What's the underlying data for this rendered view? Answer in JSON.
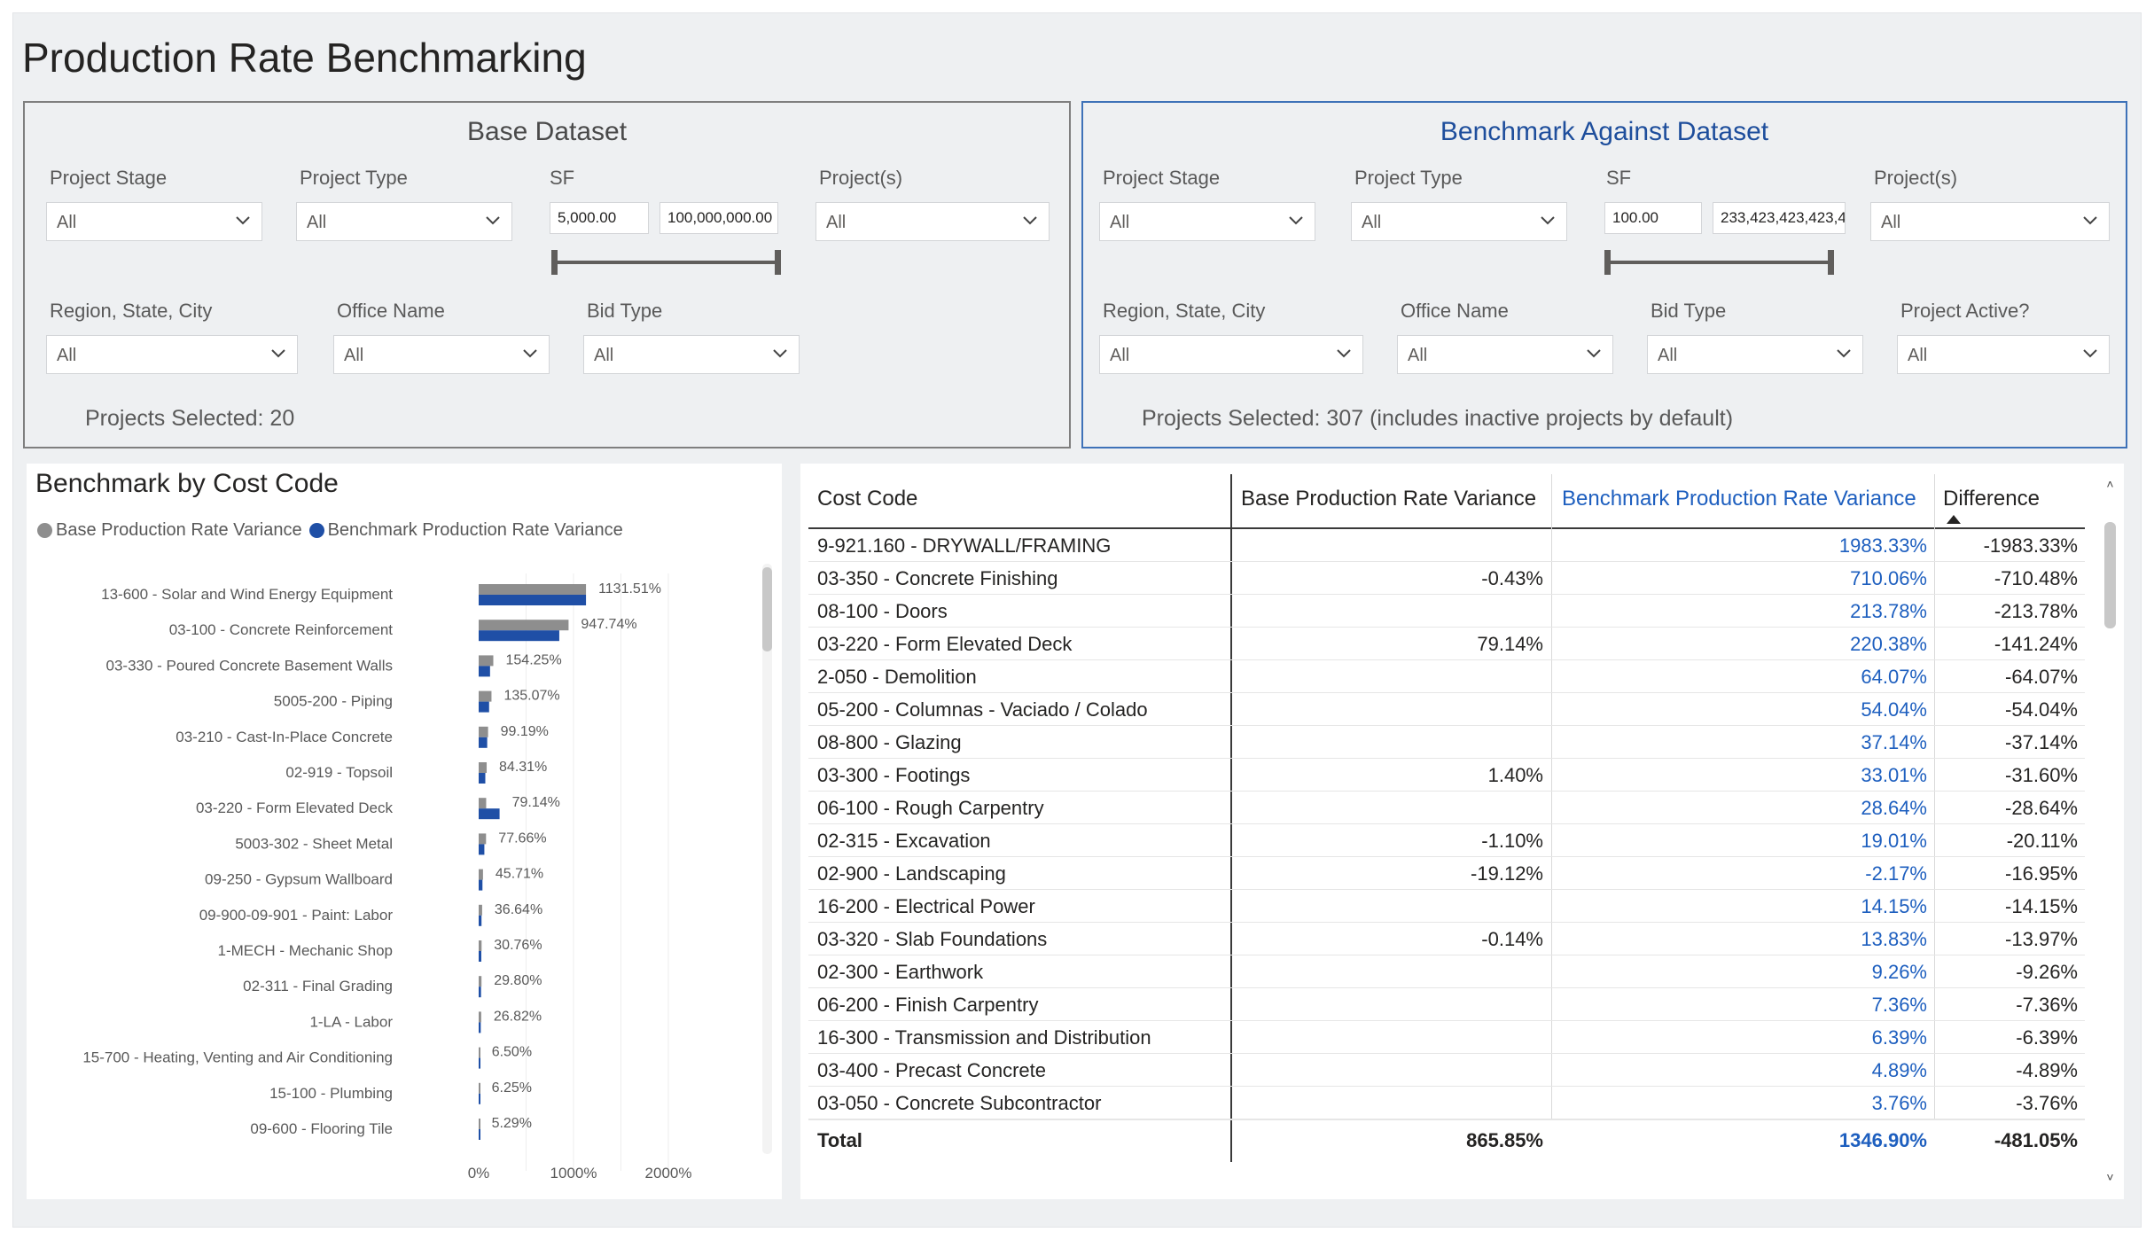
{
  "title": "Production Rate Benchmarking",
  "base_panel": {
    "title": "Base Dataset",
    "project_stage": {
      "label": "Project Stage",
      "value": "All"
    },
    "project_type": {
      "label": "Project Type",
      "value": "All"
    },
    "sf": {
      "label": "SF",
      "min": "5,000.00",
      "max": "100,000,000.00"
    },
    "projects": {
      "label": "Project(s)",
      "value": "All"
    },
    "region": {
      "label": "Region, State, City",
      "value": "All"
    },
    "office": {
      "label": "Office Name",
      "value": "All"
    },
    "bid_type": {
      "label": "Bid Type",
      "value": "All"
    },
    "selected": "Projects Selected: 20"
  },
  "bench_panel": {
    "title": "Benchmark Against Dataset",
    "project_stage": {
      "label": "Project Stage",
      "value": "All"
    },
    "project_type": {
      "label": "Project Type",
      "value": "All"
    },
    "sf": {
      "label": "SF",
      "min": "100.00",
      "max": "233,423,423,423,4"
    },
    "projects": {
      "label": "Project(s)",
      "value": "All"
    },
    "region": {
      "label": "Region, State, City",
      "value": "All"
    },
    "office": {
      "label": "Office Name",
      "value": "All"
    },
    "bid_type": {
      "label": "Bid Type",
      "value": "All"
    },
    "active": {
      "label": "Project Active?",
      "value": "All"
    },
    "selected": "Projects Selected: 307 (includes inactive projects by default)"
  },
  "chart_title": "Benchmark by Cost Code",
  "legend": {
    "base": "Base Production Rate Variance",
    "bench": "Benchmark Production Rate Variance"
  },
  "colors": {
    "base": "#8e8e8e",
    "bench": "#1f4fa6",
    "bench_text": "#1e5fbf"
  },
  "chart_data": {
    "type": "bar",
    "orientation": "horizontal",
    "categories": [
      "13-600 - Solar and Wind Energy Equipment",
      "03-100 - Concrete Reinforcement",
      "03-330 - Poured Concrete Basement Walls",
      "5005-200 - Piping",
      "03-210 - Cast-In-Place Concrete",
      "02-919 - Topsoil",
      "03-220 - Form Elevated Deck",
      "5003-302 - Sheet Metal",
      "09-250 - Gypsum Wallboard",
      "09-900-09-901 - Paint: Labor",
      "1-MECH - Mechanic Shop",
      "02-311 - Final Grading",
      "1-LA - Labor",
      "15-700 - Heating, Venting and Air Conditioning",
      "15-100 - Plumbing",
      "09-600 - Flooring Tile"
    ],
    "series": [
      {
        "name": "Base Production Rate Variance",
        "values": [
          1131.51,
          947.74,
          154.25,
          135.07,
          99.19,
          84.31,
          79.14,
          77.66,
          45.71,
          36.64,
          30.76,
          29.8,
          26.82,
          6.5,
          6.25,
          5.29
        ]
      },
      {
        "name": "Benchmark Production Rate Variance",
        "values": [
          1131.51,
          850,
          120,
          110,
          90,
          70,
          220.38,
          60,
          40,
          30,
          28,
          25,
          22,
          5,
          5,
          4
        ]
      }
    ],
    "data_labels": [
      "1131.51%",
      "947.74%",
      "154.25%",
      "135.07%",
      "99.19%",
      "84.31%",
      "79.14%",
      "77.66%",
      "45.71%",
      "36.64%",
      "30.76%",
      "29.80%",
      "26.82%",
      "6.50%",
      "6.25%",
      "5.29%"
    ],
    "x_ticks": [
      "0%",
      "1000%",
      "2000%"
    ],
    "xlim": [
      0,
      2000
    ],
    "grid": true,
    "legend_position": "top-left"
  },
  "table": {
    "headers": {
      "code": "Cost Code",
      "base": "Base Production Rate Variance",
      "bench": "Benchmark Production Rate Variance",
      "diff": "Difference"
    },
    "rows": [
      {
        "code": "9-921.160 - DRYWALL/FRAMING",
        "base": "",
        "bench": "1983.33%",
        "diff": "-1983.33%"
      },
      {
        "code": "03-350 - Concrete Finishing",
        "base": "-0.43%",
        "bench": "710.06%",
        "diff": "-710.48%"
      },
      {
        "code": "08-100 - Doors",
        "base": "",
        "bench": "213.78%",
        "diff": "-213.78%"
      },
      {
        "code": "03-220 - Form Elevated Deck",
        "base": "79.14%",
        "bench": "220.38%",
        "diff": "-141.24%"
      },
      {
        "code": "2-050 - Demolition",
        "base": "",
        "bench": "64.07%",
        "diff": "-64.07%"
      },
      {
        "code": "05-200 - Columnas - Vaciado / Colado",
        "base": "",
        "bench": "54.04%",
        "diff": "-54.04%"
      },
      {
        "code": "08-800 - Glazing",
        "base": "",
        "bench": "37.14%",
        "diff": "-37.14%"
      },
      {
        "code": "03-300 - Footings",
        "base": "1.40%",
        "bench": "33.01%",
        "diff": "-31.60%"
      },
      {
        "code": "06-100 - Rough Carpentry",
        "base": "",
        "bench": "28.64%",
        "diff": "-28.64%"
      },
      {
        "code": "02-315 - Excavation",
        "base": "-1.10%",
        "bench": "19.01%",
        "diff": "-20.11%"
      },
      {
        "code": "02-900 - Landscaping",
        "base": "-19.12%",
        "bench": "-2.17%",
        "diff": "-16.95%"
      },
      {
        "code": "16-200 - Electrical Power",
        "base": "",
        "bench": "14.15%",
        "diff": "-14.15%"
      },
      {
        "code": "03-320 - Slab Foundations",
        "base": "-0.14%",
        "bench": "13.83%",
        "diff": "-13.97%"
      },
      {
        "code": "02-300 - Earthwork",
        "base": "",
        "bench": "9.26%",
        "diff": "-9.26%"
      },
      {
        "code": "06-200 - Finish Carpentry",
        "base": "",
        "bench": "7.36%",
        "diff": "-7.36%"
      },
      {
        "code": "16-300 - Transmission and Distribution",
        "base": "",
        "bench": "6.39%",
        "diff": "-6.39%"
      },
      {
        "code": "03-400 - Precast Concrete",
        "base": "",
        "bench": "4.89%",
        "diff": "-4.89%"
      },
      {
        "code": "03-050 - Concrete Subcontractor",
        "base": "",
        "bench": "3.76%",
        "diff": "-3.76%"
      }
    ],
    "total": {
      "label": "Total",
      "base": "865.85%",
      "bench": "1346.90%",
      "diff": "-481.05%"
    }
  }
}
